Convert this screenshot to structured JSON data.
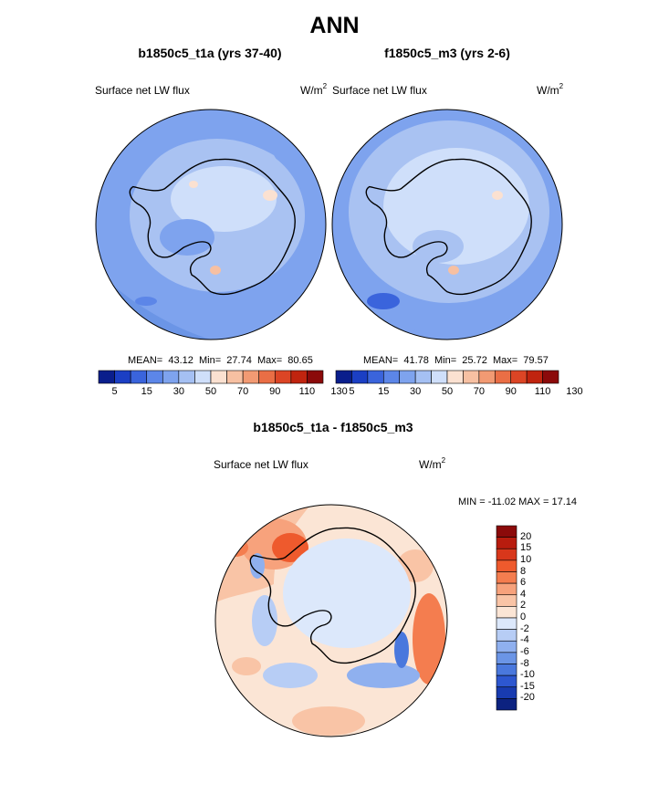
{
  "title": "ANN",
  "colors": {
    "deep_blue": "#0a2a8c",
    "mid_blue": "#6b95e6",
    "light_blue": "#a9c2f2",
    "pale_blue": "#d9e6fb",
    "peach": "#f9c7a8",
    "orange": "#f2703a",
    "dark_red": "#8b0a0a",
    "coastline": "#000000"
  },
  "panels": [
    {
      "subtitle": "b1850c5_t1a (yrs 37-40)",
      "variable": "Surface net LW flux",
      "units": "W/m",
      "units_exponent": "2",
      "stats": {
        "mean_label": "MEAN=",
        "mean": "43.12",
        "min_label": "Min=",
        "min": "27.74",
        "max_label": "Max=",
        "max": "80.65"
      }
    },
    {
      "subtitle": "f1850c5_m3 (yrs 2-6)",
      "variable": "Surface net LW flux",
      "units": "W/m",
      "units_exponent": "2",
      "stats": {
        "mean_label": "MEAN=",
        "mean": "41.78",
        "min_label": "Min=",
        "min": "25.72",
        "max_label": "Max=",
        "max": "79.57"
      }
    }
  ],
  "horizontal_colorbar": {
    "colors": [
      "#0a1e8c",
      "#1b3fc4",
      "#3a64dc",
      "#5c86e8",
      "#7ea3ee",
      "#a5c0f3",
      "#cfdffa",
      "#fbe1d1",
      "#f7c0a2",
      "#f29a73",
      "#ea6e45",
      "#dc4525",
      "#c0240f",
      "#8b0a0a"
    ],
    "tick_labels": [
      "5",
      "15",
      "30",
      "50",
      "70",
      "90",
      "110",
      "130"
    ]
  },
  "difference": {
    "subtitle": "b1850c5_t1a - f1850c5_m3",
    "variable": "Surface net LW flux",
    "units": "W/m",
    "units_exponent": "2",
    "minmax": "MIN = -11.02  MAX =  17.14"
  },
  "vertical_colorbar": {
    "colors": [
      "#8b0a0a",
      "#b81c0e",
      "#d8371b",
      "#ee5a2d",
      "#f47d4f",
      "#f7a27c",
      "#f9c4a6",
      "#fbe5d5",
      "#dce8fb",
      "#b7cdf5",
      "#8fb0ef",
      "#6b95e6",
      "#4a78dd",
      "#2d57d0",
      "#183bb0",
      "#0c2280"
    ],
    "tick_labels": [
      "20",
      "15",
      "10",
      "8",
      "6",
      "4",
      "2",
      "0",
      "-2",
      "-4",
      "-6",
      "-8",
      "-10",
      "-15",
      "-20"
    ]
  }
}
